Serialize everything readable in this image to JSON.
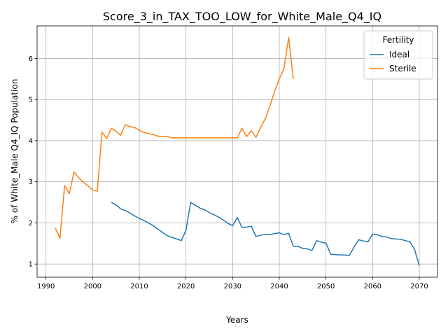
{
  "chart_data": {
    "type": "line",
    "title": "Score_3_in_TAX_TOO_LOW_for_White_Male_Q4_IQ",
    "xlabel": "Years",
    "ylabel": "% of White_Male Q4_IQ Population",
    "xlim": [
      1988.1,
      2073.9
    ],
    "ylim": [
      0.68,
      6.79
    ],
    "xticks": [
      1990,
      2000,
      2010,
      2020,
      2030,
      2040,
      2050,
      2060,
      2070
    ],
    "yticks": [
      1,
      2,
      3,
      4,
      5,
      6
    ],
    "grid": true,
    "legend": {
      "title": "Fertility",
      "placement": "top-right"
    },
    "series": [
      {
        "name": "Ideal",
        "color": "#1f77b4",
        "points": [
          [
            2004,
            2.5
          ],
          [
            2005,
            2.44
          ],
          [
            2006,
            2.34
          ],
          [
            2007,
            2.3
          ],
          [
            2008,
            2.24
          ],
          [
            2009,
            2.17
          ],
          [
            2010,
            2.11
          ],
          [
            2011,
            2.06
          ],
          [
            2012,
            2.0
          ],
          [
            2013,
            1.93
          ],
          [
            2014,
            1.85
          ],
          [
            2015,
            1.77
          ],
          [
            2016,
            1.69
          ],
          [
            2017,
            1.65
          ],
          [
            2018,
            1.61
          ],
          [
            2019,
            1.57
          ],
          [
            2020,
            1.82
          ],
          [
            2021,
            2.5
          ],
          [
            2022,
            2.43
          ],
          [
            2023,
            2.36
          ],
          [
            2024,
            2.32
          ],
          [
            2025,
            2.25
          ],
          [
            2026,
            2.2
          ],
          [
            2027,
            2.14
          ],
          [
            2028,
            2.07
          ],
          [
            2029,
            1.99
          ],
          [
            2030,
            1.93
          ],
          [
            2031,
            2.13
          ],
          [
            2032,
            1.89
          ],
          [
            2033,
            1.9
          ],
          [
            2034,
            1.92
          ],
          [
            2035,
            1.67
          ],
          [
            2036,
            1.7
          ],
          [
            2037,
            1.72
          ],
          [
            2038,
            1.72
          ],
          [
            2039,
            1.74
          ],
          [
            2040,
            1.76
          ],
          [
            2041,
            1.71
          ],
          [
            2042,
            1.75
          ],
          [
            2043,
            1.43
          ],
          [
            2044,
            1.43
          ],
          [
            2045,
            1.38
          ],
          [
            2046,
            1.37
          ],
          [
            2047,
            1.33
          ],
          [
            2048,
            1.57
          ],
          [
            2049,
            1.53
          ],
          [
            2050,
            1.51
          ],
          [
            2051,
            1.24
          ],
          [
            2052,
            1.23
          ],
          [
            2053,
            1.22
          ],
          [
            2054,
            1.22
          ],
          [
            2055,
            1.21
          ],
          [
            2056,
            1.41
          ],
          [
            2057,
            1.59
          ],
          [
            2058,
            1.56
          ],
          [
            2059,
            1.54
          ],
          [
            2060,
            1.73
          ],
          [
            2061,
            1.71
          ],
          [
            2062,
            1.67
          ],
          [
            2063,
            1.66
          ],
          [
            2064,
            1.62
          ],
          [
            2065,
            1.61
          ],
          [
            2066,
            1.6
          ],
          [
            2067,
            1.57
          ],
          [
            2068,
            1.54
          ],
          [
            2069,
            1.35
          ],
          [
            2070,
            0.96
          ]
        ]
      },
      {
        "name": "Sterile",
        "color": "#ff7f0e",
        "points": [
          [
            1992,
            1.88
          ],
          [
            1993,
            1.63
          ],
          [
            1994,
            2.91
          ],
          [
            1995,
            2.71
          ],
          [
            1996,
            3.24
          ],
          [
            1997,
            3.1
          ],
          [
            1998,
            2.99
          ],
          [
            1999,
            2.9
          ],
          [
            2000,
            2.8
          ],
          [
            2001,
            2.77
          ],
          [
            2002,
            4.21
          ],
          [
            2003,
            4.05
          ],
          [
            2004,
            4.3
          ],
          [
            2005,
            4.23
          ],
          [
            2006,
            4.13
          ],
          [
            2007,
            4.39
          ],
          [
            2008,
            4.34
          ],
          [
            2009,
            4.32
          ],
          [
            2010,
            4.25
          ],
          [
            2011,
            4.2
          ],
          [
            2012,
            4.17
          ],
          [
            2013,
            4.15
          ],
          [
            2014,
            4.11
          ],
          [
            2015,
            4.1
          ],
          [
            2016,
            4.1
          ],
          [
            2017,
            4.07
          ],
          [
            2018,
            4.07
          ],
          [
            2019,
            4.07
          ],
          [
            2020,
            4.07
          ],
          [
            2021,
            4.07
          ],
          [
            2022,
            4.07
          ],
          [
            2023,
            4.07
          ],
          [
            2024,
            4.07
          ],
          [
            2025,
            4.07
          ],
          [
            2026,
            4.07
          ],
          [
            2027,
            4.07
          ],
          [
            2028,
            4.07
          ],
          [
            2029,
            4.07
          ],
          [
            2030,
            4.07
          ],
          [
            2031,
            4.07
          ],
          [
            2032,
            4.3
          ],
          [
            2033,
            4.1
          ],
          [
            2034,
            4.24
          ],
          [
            2035,
            4.08
          ],
          [
            2036,
            4.32
          ],
          [
            2037,
            4.53
          ],
          [
            2038,
            4.85
          ],
          [
            2039,
            5.2
          ],
          [
            2040,
            5.5
          ],
          [
            2041,
            5.75
          ],
          [
            2042,
            6.51
          ],
          [
            2043,
            5.5
          ]
        ]
      }
    ]
  }
}
